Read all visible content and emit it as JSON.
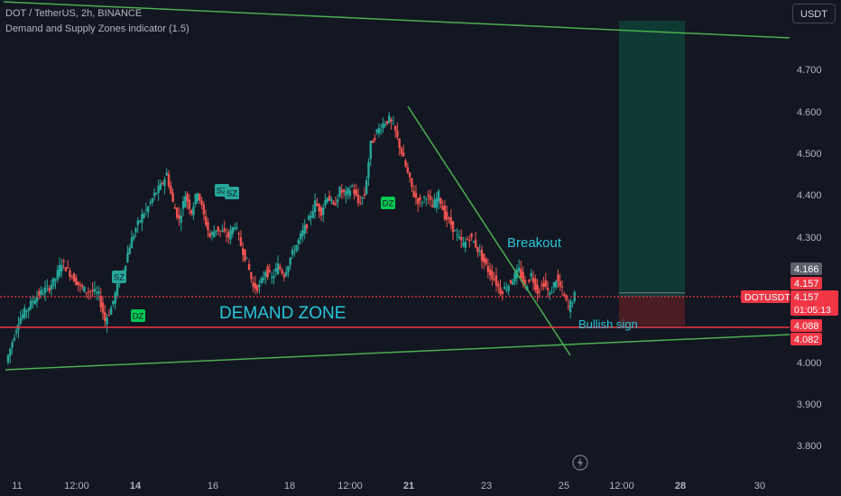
{
  "header": {
    "symbol_line": "DOT / TetherUS, 2h, BINANCE",
    "indicator_line": "Demand and Supply Zones indicator (1.5)"
  },
  "currency_button": "USDT",
  "colors": {
    "background": "#131722",
    "up_candle": "#26a69a",
    "down_candle": "#ef5350",
    "trendline": "#4caf50",
    "zone_line": "#f23645",
    "target_box": "#0f3a34",
    "stop_box": "#4a1d24",
    "annotation_text": "#26c6da",
    "axis_text": "#b2b5be"
  },
  "chart_data": {
    "type": "candlestick",
    "symbol": "DOTUSDT",
    "timeframe": "2h",
    "y_axis": {
      "ticks": [
        "4.700",
        "4.600",
        "4.500",
        "4.400",
        "4.300",
        "4.000",
        "3.900",
        "3.800"
      ],
      "range": [
        3.75,
        4.85
      ]
    },
    "x_axis": {
      "ticks": [
        "11",
        "12:00",
        "14",
        "16",
        "18",
        "12:00",
        "21",
        "23",
        "25",
        "12:00",
        "28",
        "30"
      ]
    },
    "price_series": [
      4.0,
      4.05,
      4.1,
      4.12,
      4.14,
      4.16,
      4.17,
      4.18,
      4.2,
      4.24,
      4.22,
      4.2,
      4.18,
      4.17,
      4.17,
      4.16,
      4.1,
      4.13,
      4.18,
      4.22,
      4.28,
      4.32,
      4.35,
      4.37,
      4.4,
      4.42,
      4.45,
      4.38,
      4.34,
      4.4,
      4.36,
      4.41,
      4.35,
      4.3,
      4.32,
      4.31,
      4.3,
      4.33,
      4.28,
      4.24,
      4.18,
      4.18,
      4.22,
      4.2,
      4.23,
      4.21,
      4.25,
      4.28,
      4.31,
      4.34,
      4.38,
      4.36,
      4.4,
      4.37,
      4.41,
      4.4,
      4.42,
      4.38,
      4.4,
      4.52,
      4.55,
      4.57,
      4.58,
      4.55,
      4.5,
      4.45,
      4.4,
      4.38,
      4.4,
      4.37,
      4.4,
      4.35,
      4.33,
      4.3,
      4.28,
      4.3,
      4.28,
      4.25,
      4.22,
      4.2,
      4.17,
      4.18,
      4.2,
      4.22,
      4.18,
      4.21,
      4.17,
      4.19,
      4.16,
      4.2,
      4.17,
      4.13,
      4.16
    ],
    "price_labels": [
      {
        "value": "4.166",
        "style": "grey"
      },
      {
        "value": "4.157",
        "style": "red"
      },
      {
        "value": "DOTUSDT",
        "style": "red-tag"
      },
      {
        "value": "4.157",
        "style": "red"
      },
      {
        "value": "01:05:13",
        "style": "red"
      },
      {
        "value": "4.088",
        "style": "red"
      },
      {
        "value": "4.082",
        "style": "red"
      }
    ],
    "annotations": [
      {
        "text": "DEMAND ZONE",
        "kind": "label"
      },
      {
        "text": "Breakout",
        "kind": "label"
      },
      {
        "text": "Bullish sign",
        "kind": "label"
      },
      {
        "text": "SZ",
        "kind": "supply-marker"
      },
      {
        "text": "SZ",
        "kind": "supply-marker"
      },
      {
        "text": "SZ",
        "kind": "supply-marker"
      },
      {
        "text": "DZ",
        "kind": "demand-marker"
      },
      {
        "text": "DZ",
        "kind": "demand-marker"
      }
    ],
    "demand_zone": [
      4.082,
      4.157
    ],
    "target_box": [
      4.157,
      4.815
    ],
    "stop_box": [
      4.088,
      4.157
    ],
    "grid": false
  }
}
